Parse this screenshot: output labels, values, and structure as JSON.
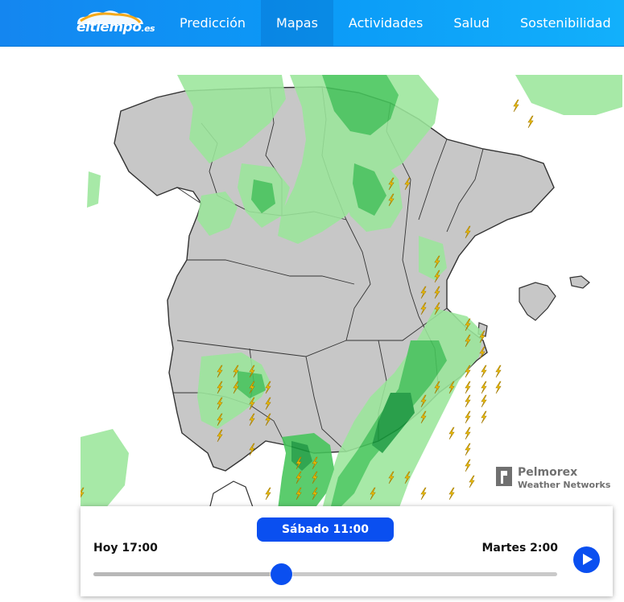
{
  "header": {
    "logo_text": "eltiempo",
    "logo_suffix": ".es",
    "nav": [
      {
        "label": "Predicción",
        "active": false
      },
      {
        "label": "Mapas",
        "active": true
      },
      {
        "label": "Actividades",
        "active": false
      },
      {
        "label": "Salud",
        "active": false
      },
      {
        "label": "Sostenibilidad",
        "active": false
      }
    ]
  },
  "map": {
    "watermark_brand": "Pelmorex",
    "watermark_sub": "Weather Networks",
    "icons": [
      "lightning-icon",
      "pelmorex-logo-icon"
    ],
    "colors": {
      "land": "#c7c7c7",
      "rain_light": "#9be69b",
      "rain_medium": "#45c55a",
      "rain_heavy": "#159a3a",
      "lightning": "#f2c200"
    }
  },
  "timeline": {
    "current_label": "Sábado 11:00",
    "start_label": "Hoy 17:00",
    "end_label": "Martes 2:00",
    "progress": 0.405,
    "accent_color": "#0a4ff0"
  }
}
